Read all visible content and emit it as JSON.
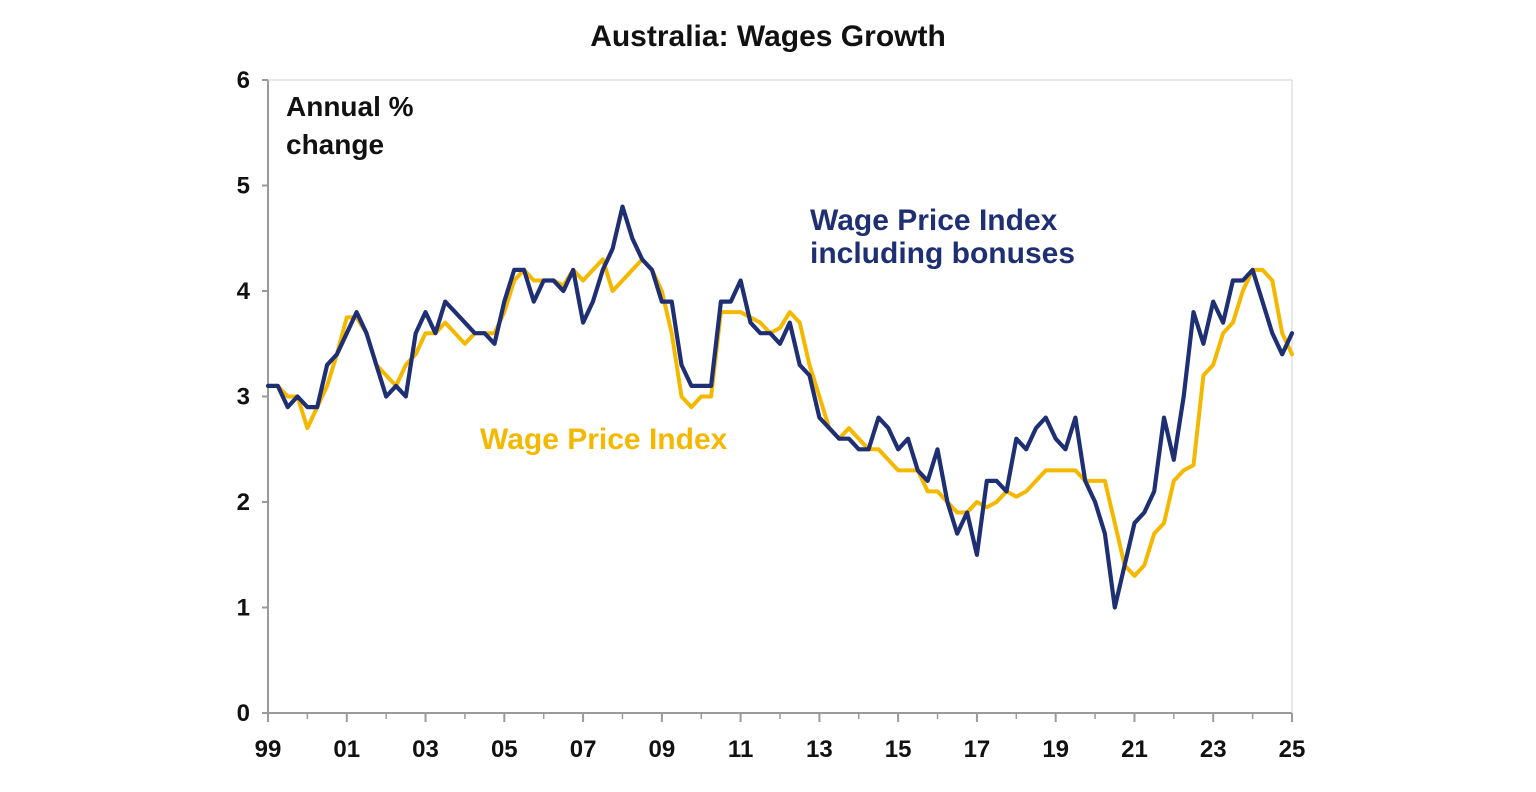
{
  "chart_data": {
    "type": "line",
    "title": "Australia: Wages Growth",
    "unit_label_lines": [
      "Annual %",
      "change"
    ],
    "xlabel": "",
    "ylabel": "",
    "ylim": [
      0,
      6
    ],
    "xlim": [
      1999,
      2025
    ],
    "x_ticks": [
      {
        "value": 1999,
        "label": "99"
      },
      {
        "value": 2001,
        "label": "01"
      },
      {
        "value": 2003,
        "label": "03"
      },
      {
        "value": 2005,
        "label": "05"
      },
      {
        "value": 2007,
        "label": "07"
      },
      {
        "value": 2009,
        "label": "09"
      },
      {
        "value": 2011,
        "label": "11"
      },
      {
        "value": 2013,
        "label": "13"
      },
      {
        "value": 2015,
        "label": "15"
      },
      {
        "value": 2017,
        "label": "17"
      },
      {
        "value": 2019,
        "label": "19"
      },
      {
        "value": 2021,
        "label": "21"
      },
      {
        "value": 2023,
        "label": "23"
      },
      {
        "value": 2025,
        "label": "25"
      }
    ],
    "y_ticks": [
      0,
      1,
      2,
      3,
      4,
      5,
      6
    ],
    "grid": false,
    "legend": "inline labels",
    "series": [
      {
        "name": "Wage Price Index",
        "label_lines": [
          "Wage Price Index"
        ],
        "color": "#F5B800",
        "x": [
          1999.0,
          1999.25,
          1999.5,
          1999.75,
          2000.0,
          2000.25,
          2000.5,
          2000.75,
          2001.0,
          2001.25,
          2001.5,
          2001.75,
          2002.0,
          2002.25,
          2002.5,
          2002.75,
          2003.0,
          2003.25,
          2003.5,
          2003.75,
          2004.0,
          2004.25,
          2004.5,
          2004.75,
          2005.0,
          2005.25,
          2005.5,
          2005.75,
          2006.0,
          2006.25,
          2006.5,
          2006.75,
          2007.0,
          2007.25,
          2007.5,
          2007.75,
          2008.0,
          2008.25,
          2008.5,
          2008.75,
          2009.0,
          2009.25,
          2009.5,
          2009.75,
          2010.0,
          2010.25,
          2010.5,
          2010.75,
          2011.0,
          2011.25,
          2011.5,
          2011.75,
          2012.0,
          2012.25,
          2012.5,
          2012.75,
          2013.0,
          2013.25,
          2013.5,
          2013.75,
          2014.0,
          2014.25,
          2014.5,
          2014.75,
          2015.0,
          2015.25,
          2015.5,
          2015.75,
          2016.0,
          2016.25,
          2016.5,
          2016.75,
          2017.0,
          2017.25,
          2017.5,
          2017.75,
          2018.0,
          2018.25,
          2018.5,
          2018.75,
          2019.0,
          2019.25,
          2019.5,
          2019.75,
          2020.0,
          2020.25,
          2020.5,
          2020.75,
          2021.0,
          2021.25,
          2021.5,
          2021.75,
          2022.0,
          2022.25,
          2022.5,
          2022.75,
          2023.0,
          2023.25,
          2023.5,
          2023.75,
          2024.0,
          2024.25,
          2024.5,
          2024.75,
          2025.0
        ],
        "values": [
          3.1,
          3.1,
          3.0,
          3.0,
          2.7,
          2.9,
          3.1,
          3.4,
          3.75,
          3.75,
          3.6,
          3.3,
          3.2,
          3.1,
          3.3,
          3.4,
          3.6,
          3.6,
          3.7,
          3.6,
          3.5,
          3.6,
          3.6,
          3.6,
          3.8,
          4.1,
          4.2,
          4.1,
          4.1,
          4.1,
          4.05,
          4.2,
          4.1,
          4.2,
          4.3,
          4.0,
          4.1,
          4.2,
          4.3,
          4.2,
          4.0,
          3.6,
          3.0,
          2.9,
          3.0,
          3.0,
          3.8,
          3.8,
          3.8,
          3.75,
          3.7,
          3.6,
          3.65,
          3.8,
          3.7,
          3.3,
          3.0,
          2.7,
          2.6,
          2.7,
          2.6,
          2.5,
          2.5,
          2.4,
          2.3,
          2.3,
          2.3,
          2.1,
          2.1,
          2.0,
          1.9,
          1.9,
          2.0,
          1.95,
          2.0,
          2.1,
          2.05,
          2.1,
          2.2,
          2.3,
          2.3,
          2.3,
          2.3,
          2.2,
          2.2,
          2.2,
          1.8,
          1.4,
          1.3,
          1.4,
          1.7,
          1.8,
          2.2,
          2.3,
          2.35,
          3.2,
          3.3,
          3.6,
          3.7,
          4.0,
          4.2,
          4.2,
          4.1,
          3.6,
          3.4
        ]
      },
      {
        "name": "Wage Price Index including bonuses",
        "label_lines": [
          "Wage Price Index",
          "including bonuses"
        ],
        "color": "#1F2F73",
        "x": [
          1999.0,
          1999.25,
          1999.5,
          1999.75,
          2000.0,
          2000.25,
          2000.5,
          2000.75,
          2001.0,
          2001.25,
          2001.5,
          2001.75,
          2002.0,
          2002.25,
          2002.5,
          2002.75,
          2003.0,
          2003.25,
          2003.5,
          2003.75,
          2004.0,
          2004.25,
          2004.5,
          2004.75,
          2005.0,
          2005.25,
          2005.5,
          2005.75,
          2006.0,
          2006.25,
          2006.5,
          2006.75,
          2007.0,
          2007.25,
          2007.5,
          2007.75,
          2008.0,
          2008.25,
          2008.5,
          2008.75,
          2009.0,
          2009.25,
          2009.5,
          2009.75,
          2010.0,
          2010.25,
          2010.5,
          2010.75,
          2011.0,
          2011.25,
          2011.5,
          2011.75,
          2012.0,
          2012.25,
          2012.5,
          2012.75,
          2013.0,
          2013.25,
          2013.5,
          2013.75,
          2014.0,
          2014.25,
          2014.5,
          2014.75,
          2015.0,
          2015.25,
          2015.5,
          2015.75,
          2016.0,
          2016.25,
          2016.5,
          2016.75,
          2017.0,
          2017.25,
          2017.5,
          2017.75,
          2018.0,
          2018.25,
          2018.5,
          2018.75,
          2019.0,
          2019.25,
          2019.5,
          2019.75,
          2020.0,
          2020.25,
          2020.5,
          2020.75,
          2021.0,
          2021.25,
          2021.5,
          2021.75,
          2022.0,
          2022.25,
          2022.5,
          2022.75,
          2023.0,
          2023.25,
          2023.5,
          2023.75,
          2024.0,
          2024.25,
          2024.5,
          2024.75,
          2025.0
        ],
        "values": [
          3.1,
          3.1,
          2.9,
          3.0,
          2.9,
          2.9,
          3.3,
          3.4,
          3.6,
          3.8,
          3.6,
          3.3,
          3.0,
          3.1,
          3.0,
          3.6,
          3.8,
          3.6,
          3.9,
          3.8,
          3.7,
          3.6,
          3.6,
          3.5,
          3.9,
          4.2,
          4.2,
          3.9,
          4.1,
          4.1,
          4.0,
          4.2,
          3.7,
          3.9,
          4.2,
          4.4,
          4.8,
          4.5,
          4.3,
          4.2,
          3.9,
          3.9,
          3.3,
          3.1,
          3.1,
          3.1,
          3.9,
          3.9,
          4.1,
          3.7,
          3.6,
          3.6,
          3.5,
          3.7,
          3.3,
          3.2,
          2.8,
          2.7,
          2.6,
          2.6,
          2.5,
          2.5,
          2.8,
          2.7,
          2.5,
          2.6,
          2.3,
          2.2,
          2.5,
          2.0,
          1.7,
          1.9,
          1.5,
          2.2,
          2.2,
          2.1,
          2.6,
          2.5,
          2.7,
          2.8,
          2.6,
          2.5,
          2.8,
          2.2,
          2.0,
          1.7,
          1.0,
          1.4,
          1.8,
          1.9,
          2.1,
          2.8,
          2.4,
          3.0,
          3.8,
          3.5,
          3.9,
          3.7,
          4.1,
          4.1,
          4.2,
          3.9,
          3.6,
          3.4,
          3.6
        ]
      }
    ]
  }
}
